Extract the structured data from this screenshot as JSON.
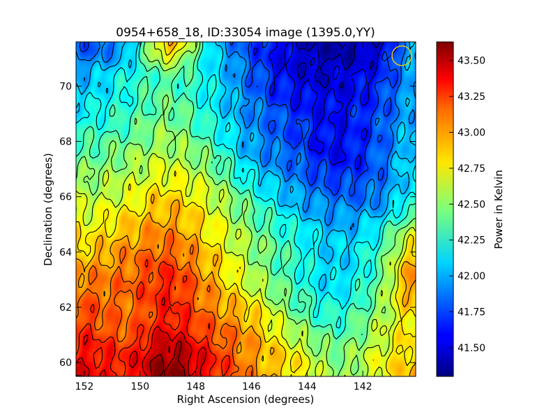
{
  "chart_data": {
    "type": "heatmap",
    "title": "0954+658_18, ID:33054 image (1395.0,YY)",
    "xlabel": "Right Ascension (degrees)",
    "ylabel": "Declination (degrees)",
    "colorbar_label": "Power in Kelvin",
    "xlim": [
      152.3,
      140.1
    ],
    "ylim": [
      59.5,
      71.6
    ],
    "x_ticks": [
      152,
      150,
      148,
      146,
      144,
      142
    ],
    "x_tick_labels": [
      "152",
      "150",
      "148",
      "146",
      "144",
      "142"
    ],
    "y_ticks": [
      60,
      62,
      64,
      66,
      68,
      70
    ],
    "y_tick_labels": [
      "60",
      "62",
      "64",
      "66",
      "68",
      "70"
    ],
    "colorbar_range": [
      41.3,
      43.63
    ],
    "colorbar_ticks": [
      41.5,
      41.75,
      42.0,
      42.25,
      42.5,
      42.75,
      43.0,
      43.25,
      43.5
    ],
    "colorbar_tick_labels": [
      "41.50",
      "41.75",
      "42.00",
      "42.25",
      "42.50",
      "42.75",
      "43.00",
      "43.25",
      "43.50"
    ],
    "colormap": "jet",
    "contours": true,
    "beam_marker": {
      "ra": 140.6,
      "dec": 71.1,
      "color": "#e8c619"
    },
    "grid_ra": [
      152.0,
      150.5,
      149.0,
      147.5,
      146.0,
      144.5,
      143.0,
      141.5,
      140.3
    ],
    "grid_dec": [
      60.0,
      61.5,
      63.0,
      64.5,
      66.0,
      67.5,
      69.0,
      70.5,
      71.5
    ],
    "values": [
      [
        43.35,
        43.3,
        43.6,
        43.3,
        43.0,
        42.8,
        42.5,
        42.7,
        42.9
      ],
      [
        43.2,
        43.1,
        43.3,
        43.1,
        42.9,
        42.5,
        42.3,
        42.55,
        42.8
      ],
      [
        43.05,
        43.1,
        43.25,
        42.95,
        42.6,
        42.3,
        42.1,
        42.4,
        43.0
      ],
      [
        42.8,
        42.95,
        43.05,
        42.8,
        42.5,
        42.25,
        42.05,
        42.25,
        42.7
      ],
      [
        42.6,
        42.7,
        42.85,
        42.65,
        42.3,
        42.0,
        41.85,
        41.9,
        42.2
      ],
      [
        42.4,
        42.5,
        42.6,
        42.4,
        42.0,
        41.8,
        41.6,
        41.8,
        42.1
      ],
      [
        42.2,
        42.3,
        42.45,
        42.2,
        41.9,
        41.7,
        41.6,
        41.75,
        42.0
      ],
      [
        42.0,
        42.2,
        42.4,
        42.15,
        41.8,
        41.55,
        41.5,
        41.65,
        41.95
      ],
      [
        41.8,
        42.0,
        42.9,
        42.1,
        41.75,
        41.5,
        41.4,
        41.5,
        42.0
      ]
    ]
  }
}
